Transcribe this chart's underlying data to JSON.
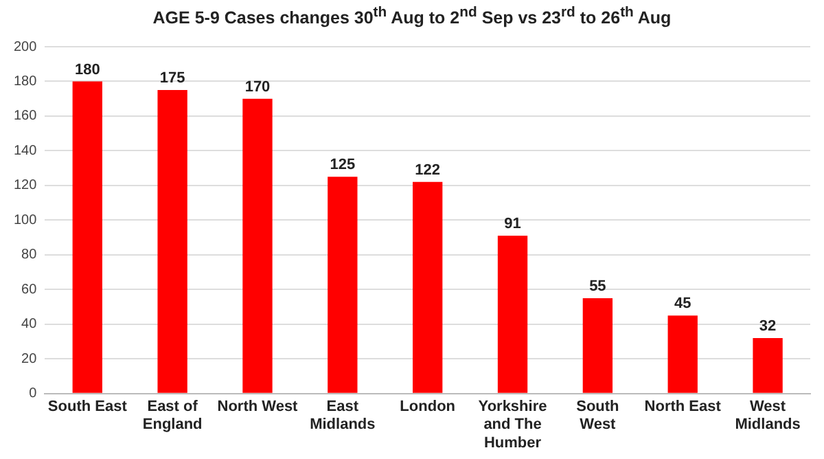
{
  "chart_data": {
    "type": "bar",
    "title": "AGE 5-9 Cases changes 30$^{th}$ Aug to 2$^{nd}$ Sep vs 23$^{rd}$ to 26$^{th}$ Aug",
    "categories": [
      "South East",
      "East of England",
      "North West",
      "East Midlands",
      "London",
      "Yorkshire and The Humber",
      "South West",
      "North East",
      "West Midlands"
    ],
    "values": [
      180,
      175,
      170,
      125,
      122,
      91,
      55,
      45,
      32
    ],
    "color": "#ff0000",
    "ylim": [
      0,
      200
    ],
    "yticks": [
      0,
      20,
      40,
      60,
      80,
      100,
      120,
      140,
      160,
      180,
      200
    ],
    "grid": "y",
    "data_labels": true
  }
}
